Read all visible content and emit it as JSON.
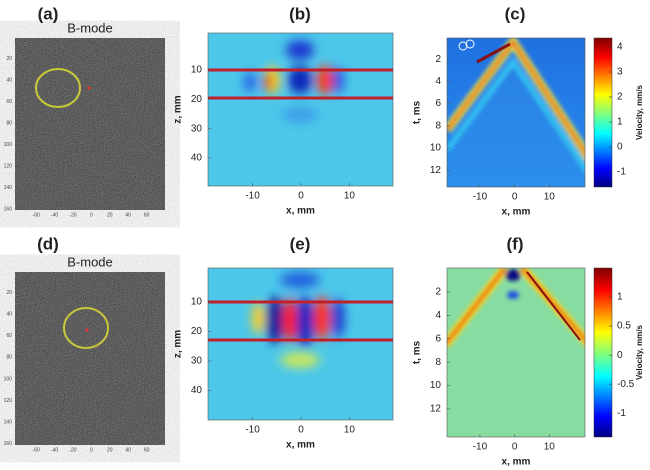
{
  "panels": [
    {
      "label": "(a)",
      "title": "B-mode",
      "xticks": [
        -60,
        -40,
        -20,
        0,
        20,
        40,
        60
      ],
      "xlim": [
        -83,
        80
      ],
      "yticks": [
        20,
        40,
        60,
        80,
        100,
        120,
        140,
        160
      ],
      "ylim": [
        1,
        161
      ]
    },
    {
      "label": "(b)",
      "xlabel": "x, mm",
      "ylabel": "z, mm",
      "xticks": [
        -10,
        0,
        10
      ],
      "xlim": [
        -19.2,
        19
      ],
      "yticks": [
        10,
        20,
        30,
        40
      ],
      "ylim": [
        -2.5,
        49.5
      ]
    },
    {
      "label": "(c)",
      "xlabel": "x, mm",
      "ylabel": "t, ms",
      "xticks": [
        -10,
        0,
        10
      ],
      "xlim": [
        -19.5,
        20.3
      ],
      "yticks": [
        2,
        4,
        6,
        8,
        10,
        12
      ],
      "ylim": [
        0.1,
        13.5
      ],
      "colorbar": {
        "label": "Velocity, mm/s",
        "ticks": [
          4,
          3,
          2,
          1,
          0,
          -1
        ],
        "lim": [
          -1.6,
          4.36
        ]
      }
    },
    {
      "label": "(d)",
      "title": "B-mode",
      "xticks": [
        -60,
        -40,
        -20,
        0,
        20,
        40,
        60
      ],
      "xlim": [
        -83,
        80
      ],
      "yticks": [
        20,
        40,
        60,
        80,
        100,
        120,
        140,
        160
      ],
      "ylim": [
        1,
        161
      ]
    },
    {
      "label": "(e)",
      "xlabel": "x, mm",
      "ylabel": "z, mm",
      "xticks": [
        -10,
        0,
        10
      ],
      "xlim": [
        -19.2,
        19
      ],
      "yticks": [
        10,
        20,
        30,
        40
      ],
      "ylim": [
        -1.5,
        50
      ]
    },
    {
      "label": "(f)",
      "xlabel": "x, mm",
      "ylabel": "t, ms",
      "xticks": [
        -10,
        0,
        10
      ],
      "xlim": [
        -19.5,
        20.3
      ],
      "yticks": [
        2,
        4,
        6,
        8,
        10,
        12
      ],
      "ylim": [
        -0.05,
        14.4
      ],
      "colorbar": {
        "label": "Velocity, mm/s",
        "ticks": [
          1,
          0.5,
          0,
          -0.5,
          -1
        ],
        "lim": [
          -1.41,
          1.5
        ]
      }
    }
  ]
}
